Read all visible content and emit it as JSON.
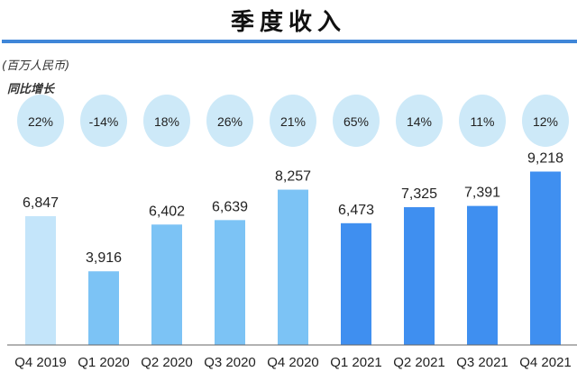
{
  "chart_data": {
    "type": "bar",
    "title": "季度收入",
    "unit_label": "(百万人民币)",
    "growth_label": "同比增长",
    "categories": [
      "Q4 2019",
      "Q1 2020",
      "Q2 2020",
      "Q3 2020",
      "Q4 2020",
      "Q1 2021",
      "Q2 2021",
      "Q3 2021",
      "Q4 2021"
    ],
    "values": [
      6847,
      3916,
      6402,
      6639,
      8257,
      6473,
      7325,
      7391,
      9218
    ],
    "value_labels": [
      "6,847",
      "3,916",
      "6,402",
      "6,639",
      "8,257",
      "6,473",
      "7,325",
      "7,391",
      "9,218"
    ],
    "yoy_growth": [
      "22%",
      "-14%",
      "18%",
      "26%",
      "21%",
      "65%",
      "14%",
      "11%",
      "12%"
    ],
    "bar_colors": [
      "#c4e5fa",
      "#7cc3f5",
      "#7cc3f5",
      "#7cc3f5",
      "#7cc3f5",
      "#3f8ff0",
      "#3f8ff0",
      "#3f8ff0",
      "#3f8ff0"
    ],
    "circle_color": "#cde9f8",
    "ylim": [
      0,
      9500
    ]
  }
}
